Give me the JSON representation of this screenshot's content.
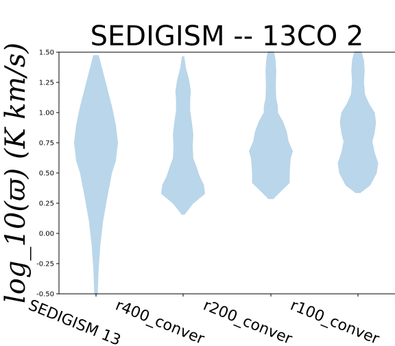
{
  "chart_data": {
    "type": "violin",
    "title": "SEDIGISM -- 13CO 2",
    "ylabel": "log_10(ϖ) (K km/s)",
    "ylim": [
      -0.5,
      1.5
    ],
    "yticks": [
      "-0.50",
      "-0.25",
      "0.00",
      "0.25",
      "0.50",
      "0.75",
      "1.00",
      "1.25",
      "1.50"
    ],
    "categories": [
      "SEDIGISM 13",
      "r400_conver",
      "r200_conver",
      "r100_conver"
    ],
    "color": "#bad6ea",
    "violins": [
      {
        "profile": [
          [
            -0.5,
            0.05
          ],
          [
            -0.3,
            0.09
          ],
          [
            -0.1,
            0.17
          ],
          [
            0.1,
            0.3
          ],
          [
            0.3,
            0.5
          ],
          [
            0.5,
            0.72
          ],
          [
            0.6,
            0.9
          ],
          [
            0.75,
            1.0
          ],
          [
            0.9,
            0.9
          ],
          [
            1.05,
            0.72
          ],
          [
            1.2,
            0.5
          ],
          [
            1.35,
            0.28
          ],
          [
            1.47,
            0.1
          ]
        ]
      },
      {
        "profile": [
          [
            0.16,
            0.05
          ],
          [
            0.25,
            0.45
          ],
          [
            0.33,
            1.0
          ],
          [
            0.4,
            0.95
          ],
          [
            0.47,
            0.75
          ],
          [
            0.55,
            0.6
          ],
          [
            0.62,
            0.45
          ],
          [
            0.72,
            0.42
          ],
          [
            0.82,
            0.45
          ],
          [
            0.92,
            0.38
          ],
          [
            1.02,
            0.3
          ],
          [
            1.1,
            0.3
          ],
          [
            1.18,
            0.33
          ],
          [
            1.27,
            0.25
          ],
          [
            1.37,
            0.1
          ],
          [
            1.46,
            0.03
          ]
        ]
      },
      {
        "profile": [
          [
            0.29,
            0.1
          ],
          [
            0.36,
            0.5
          ],
          [
            0.42,
            0.85
          ],
          [
            0.5,
            0.85
          ],
          [
            0.62,
            0.9
          ],
          [
            0.68,
            1.0
          ],
          [
            0.76,
            0.8
          ],
          [
            0.84,
            0.72
          ],
          [
            0.92,
            0.55
          ],
          [
            1.0,
            0.3
          ],
          [
            1.05,
            0.3
          ],
          [
            1.12,
            0.22
          ],
          [
            1.22,
            0.2
          ],
          [
            1.35,
            0.22
          ],
          [
            1.45,
            0.18
          ],
          [
            1.5,
            0.12
          ]
        ]
      },
      {
        "profile": [
          [
            0.34,
            0.1
          ],
          [
            0.4,
            0.55
          ],
          [
            0.5,
            0.85
          ],
          [
            0.58,
            0.92
          ],
          [
            0.67,
            0.75
          ],
          [
            0.76,
            0.65
          ],
          [
            0.83,
            0.75
          ],
          [
            0.92,
            0.82
          ],
          [
            1.0,
            0.75
          ],
          [
            1.07,
            0.5
          ],
          [
            1.15,
            0.3
          ],
          [
            1.25,
            0.25
          ],
          [
            1.35,
            0.28
          ],
          [
            1.43,
            0.25
          ],
          [
            1.5,
            0.15
          ]
        ]
      }
    ]
  }
}
